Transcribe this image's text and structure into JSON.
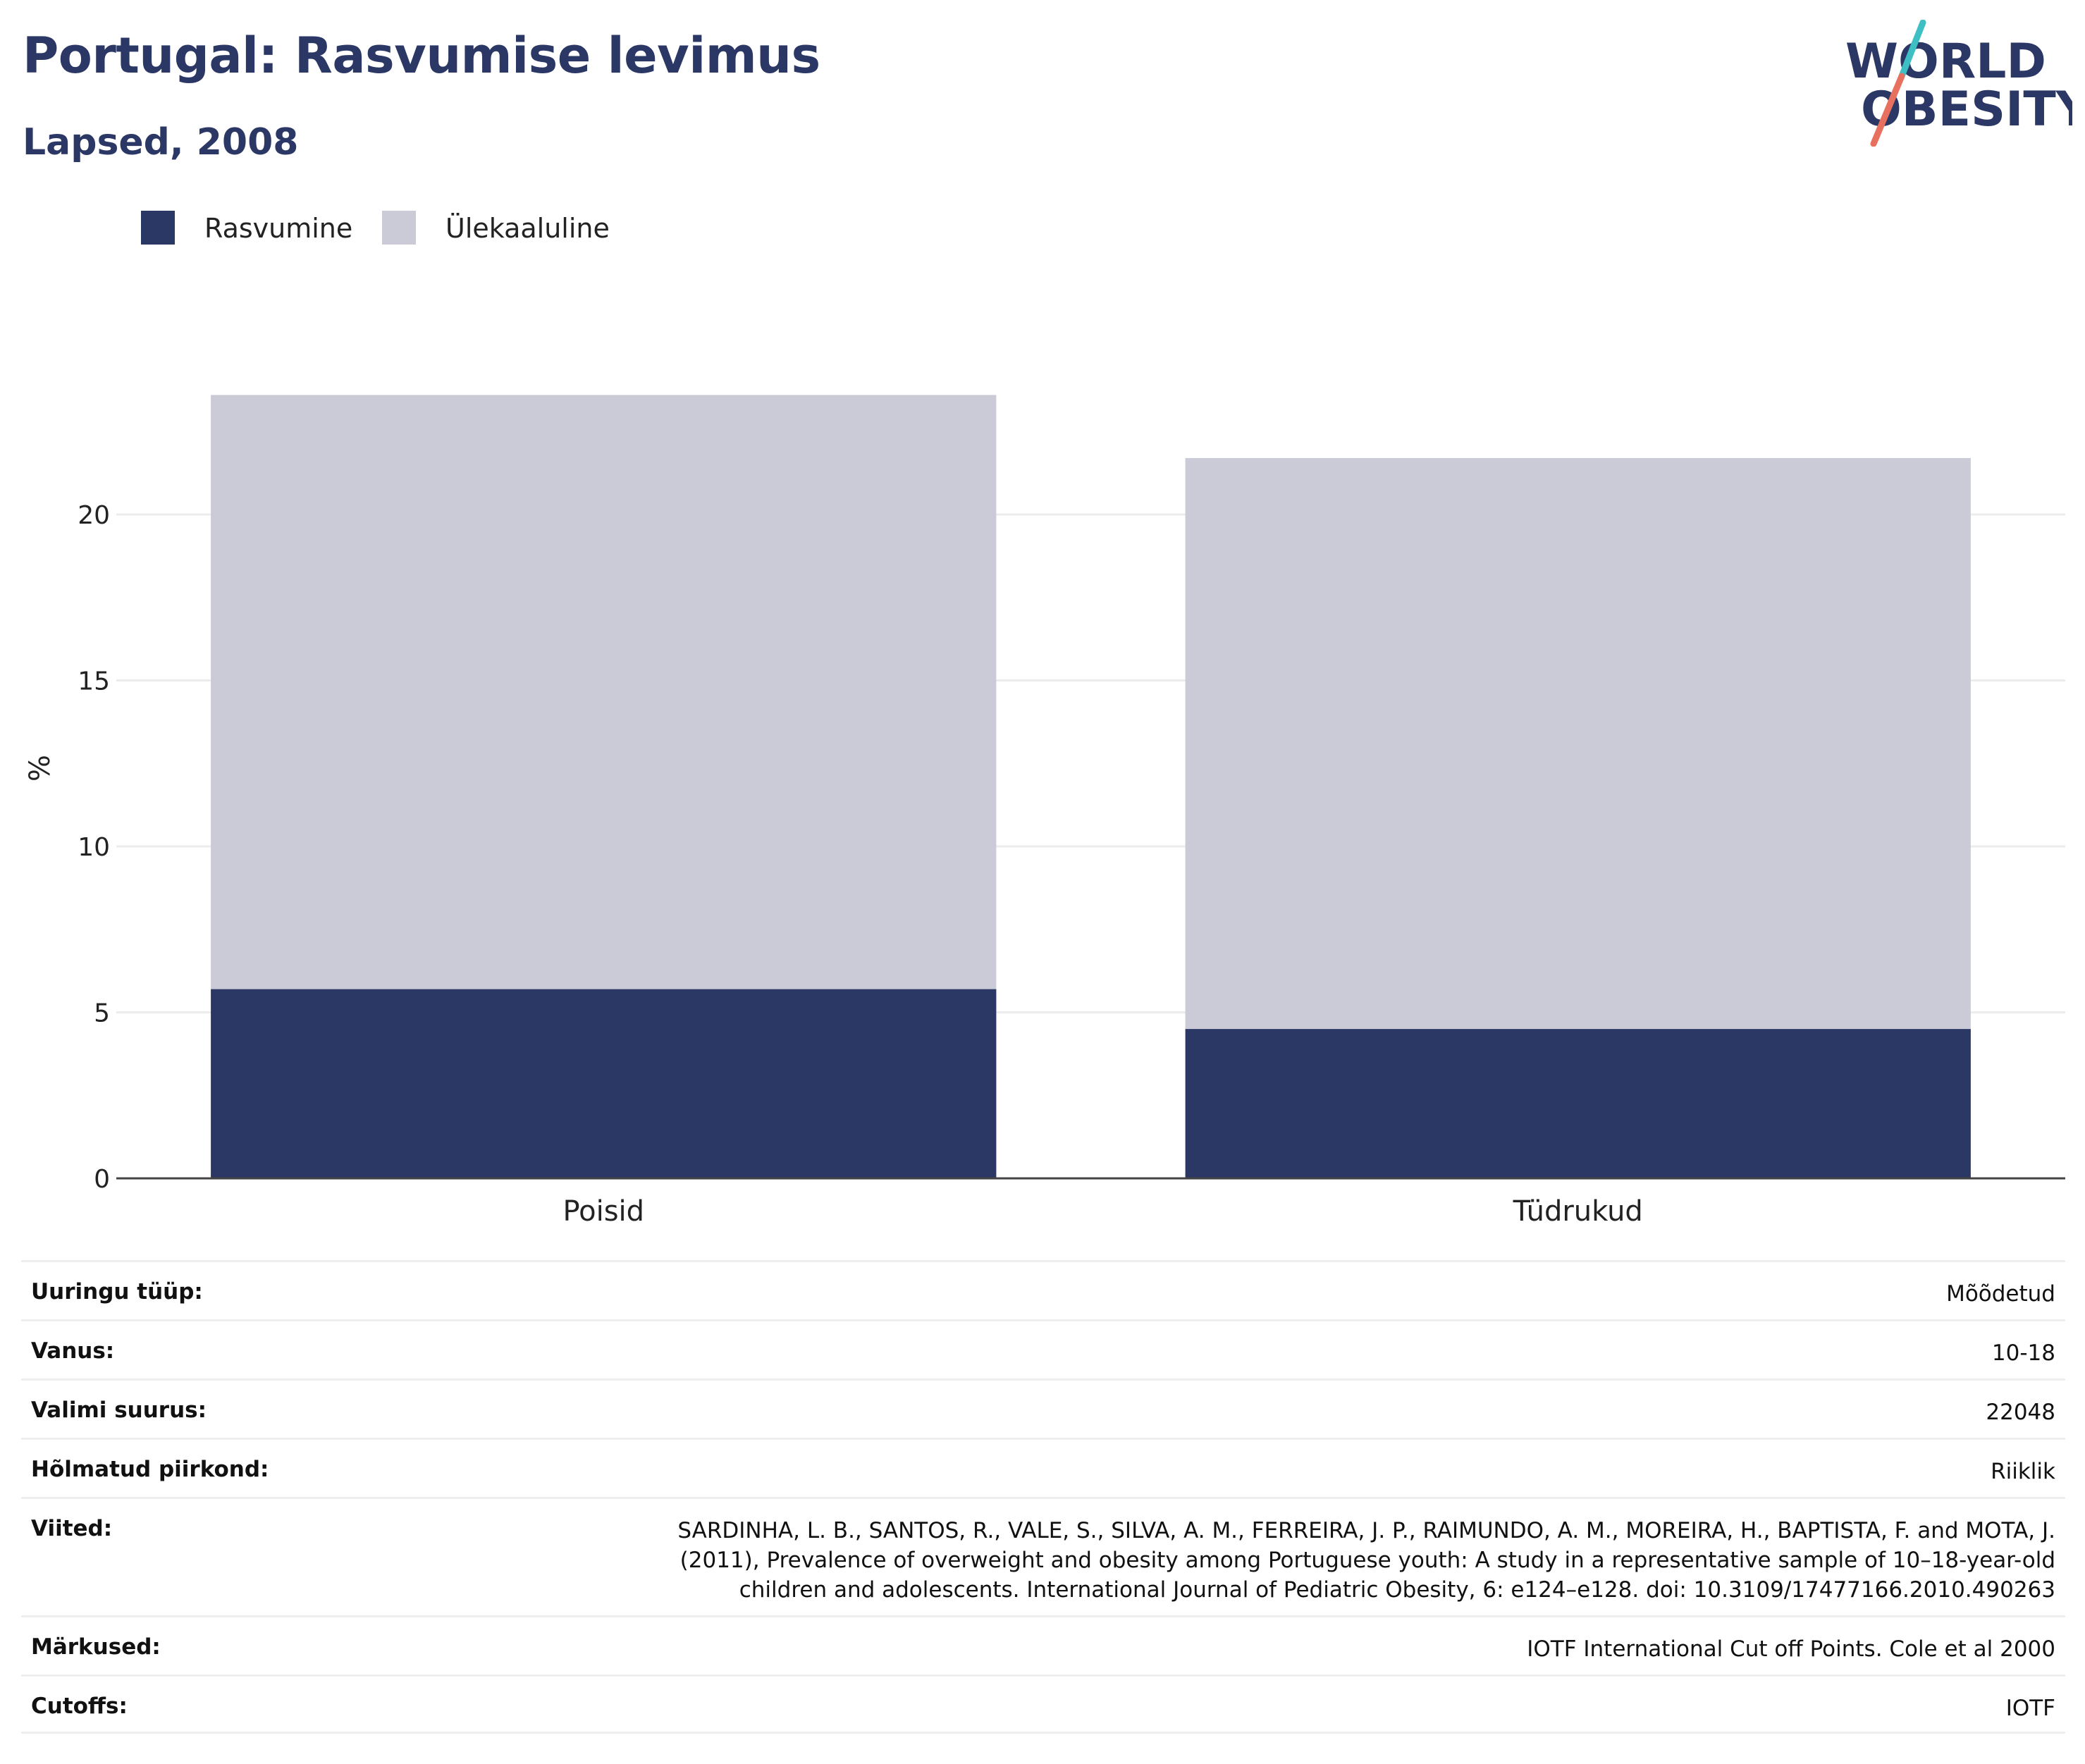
{
  "header": {
    "title": "Portugal: Rasvumise levimus",
    "subtitle": "Lapsed, 2008",
    "logo_line1": "WORLD",
    "logo_line2": "OBESITY"
  },
  "legend": [
    {
      "label": "Rasvumine",
      "color": "#2b3765"
    },
    {
      "label": "Ülekaaluline",
      "color": "#cacbd7"
    }
  ],
  "chart_data": {
    "type": "bar",
    "stacked": true,
    "categories": [
      "Poisid",
      "Tüdrukud"
    ],
    "series": [
      {
        "name": "Rasvumine",
        "color": "#2b3765",
        "values": [
          5.7,
          4.5
        ]
      },
      {
        "name": "Ülekaaluline",
        "color": "#cacbd7",
        "values": [
          17.9,
          17.2
        ]
      }
    ],
    "ylabel": "%",
    "ylim": [
      0,
      24.5
    ],
    "yticks": [
      0,
      5,
      10,
      15,
      20
    ],
    "grid": true,
    "legend_position": "top-left"
  },
  "meta": [
    {
      "key": "Uuringu tüüp:",
      "value": "Mõõdetud"
    },
    {
      "key": "Vanus:",
      "value": "10-18"
    },
    {
      "key": "Valimi suurus:",
      "value": "22048"
    },
    {
      "key": "Hõlmatud piirkond:",
      "value": "Riiklik"
    },
    {
      "key": "Viited:",
      "value": "SARDINHA, L. B., SANTOS, R., VALE, S., SILVA, A. M., FERREIRA, J. P., RAIMUNDO, A. M., MOREIRA, H., BAPTISTA, F. and MOTA, J. (2011), Prevalence of overweight and obesity among Portuguese youth: A study in a representative sample of 10–18-year-old children and adolescents. International Journal of Pediatric Obesity, 6: e124–e128. doi: 10.3109/17477166.2010.490263"
    },
    {
      "key": "Märkused:",
      "value": "IOTF International Cut off Points. Cole et al 2000"
    },
    {
      "key": "Cutoffs:",
      "value": "IOTF"
    }
  ]
}
